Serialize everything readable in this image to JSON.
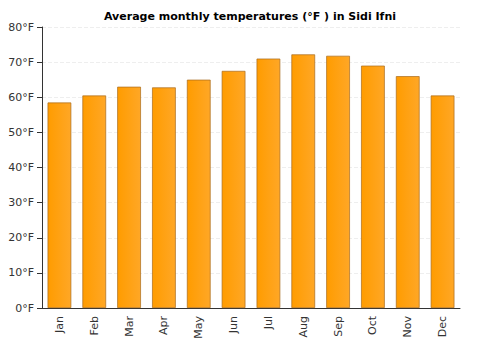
{
  "chart_data": {
    "type": "bar",
    "title": "Average monthly temperatures (°F ) in Sidi Ifni",
    "categories": [
      "Jan",
      "Feb",
      "Mar",
      "Apr",
      "May",
      "Jun",
      "Jul",
      "Aug",
      "Sep",
      "Oct",
      "Nov",
      "Dec"
    ],
    "values": [
      58.5,
      60.5,
      63,
      62.8,
      65,
      67.5,
      71,
      72.2,
      71.8,
      69,
      66,
      60.5
    ],
    "color": "#ffa726",
    "ylim": [
      0,
      80
    ],
    "yticks": [
      {
        "value": 0,
        "label": "0°F"
      },
      {
        "value": 10,
        "label": "10°F"
      },
      {
        "value": 20,
        "label": "20°F"
      },
      {
        "value": 30,
        "label": "30°F"
      },
      {
        "value": 40,
        "label": "40°F"
      },
      {
        "value": 50,
        "label": "50°F"
      },
      {
        "value": 60,
        "label": "60°F"
      },
      {
        "value": 70,
        "label": "70°F"
      },
      {
        "value": 80,
        "label": "80°F"
      }
    ],
    "grid": true
  }
}
